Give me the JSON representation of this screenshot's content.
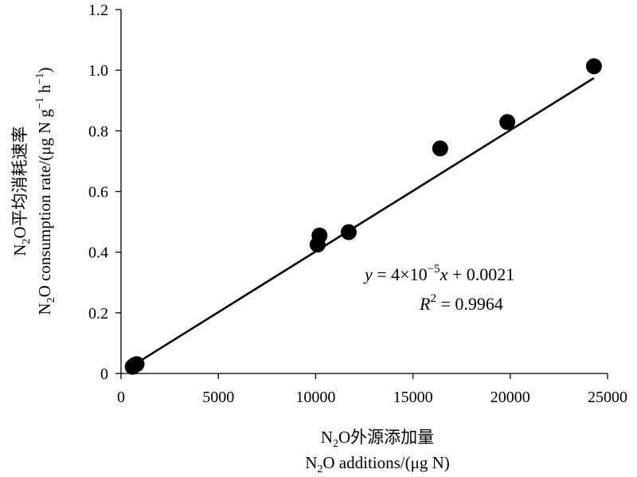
{
  "chart_data": {
    "type": "scatter",
    "x_ticks": [
      "0",
      "5000",
      "10000",
      "15000",
      "20000",
      "25000"
    ],
    "y_ticks": [
      "0",
      "0.2",
      "0.4",
      "0.6",
      "0.8",
      "1.0",
      "1.2"
    ],
    "xlim": [
      0,
      25000
    ],
    "ylim": [
      0,
      1.2
    ],
    "grid": false,
    "series": [
      {
        "points": [
          {
            "x": 600,
            "y": 0.022
          },
          {
            "x": 700,
            "y": 0.028
          },
          {
            "x": 800,
            "y": 0.031
          },
          {
            "x": 10100,
            "y": 0.425
          },
          {
            "x": 10200,
            "y": 0.455
          },
          {
            "x": 11700,
            "y": 0.466
          },
          {
            "x": 16400,
            "y": 0.742
          },
          {
            "x": 19850,
            "y": 0.829
          },
          {
            "x": 24300,
            "y": 1.013
          }
        ]
      }
    ],
    "trendline": {
      "slope": 4e-05,
      "intercept": 0.0021,
      "x_range": [
        600,
        24300
      ]
    },
    "equation": {
      "y": "y",
      "eq_mid": " = 4×10",
      "exp": "−5",
      "x": "x",
      "tail": " + 0.0021",
      "r": "R",
      "r_exp": "2",
      "r_tail": " = 0.9964"
    },
    "xlabel": {
      "line1_pre": "N",
      "line1_sub": "2",
      "line1_post": "O外源添加量",
      "line2_pre": "N",
      "line2_sub": "2",
      "line2_post": "O additions/(μg N)"
    },
    "ylabel": {
      "line1_pre": "N",
      "line1_sub": "2",
      "line1_post": "O平均消耗速率",
      "line2_pre": "N",
      "line2_sub": "2",
      "line2_mid1": "O consumption rate/(μg N g",
      "line2_sup1": "−1",
      "line2_mid2": " h",
      "line2_sup2": "−1",
      "line2_end": ")"
    }
  }
}
